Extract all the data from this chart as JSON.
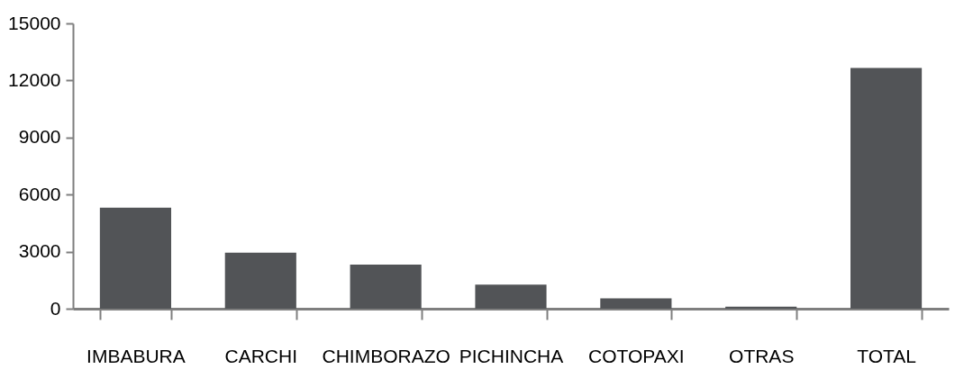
{
  "chart_data": {
    "type": "bar",
    "categories": [
      "IMBABURA",
      "CARCHI",
      "CHIMBORAZO",
      "PICHINCHA",
      "COTOPAXI",
      "OTRAS",
      "TOTAL"
    ],
    "values": [
      5310,
      2940,
      2320,
      1260,
      540,
      110,
      12660
    ],
    "color": "#525457",
    "ylim": [
      0,
      15000
    ],
    "yticks": [
      0,
      3000,
      6000,
      9000,
      12000,
      15000
    ],
    "grid": false
  }
}
